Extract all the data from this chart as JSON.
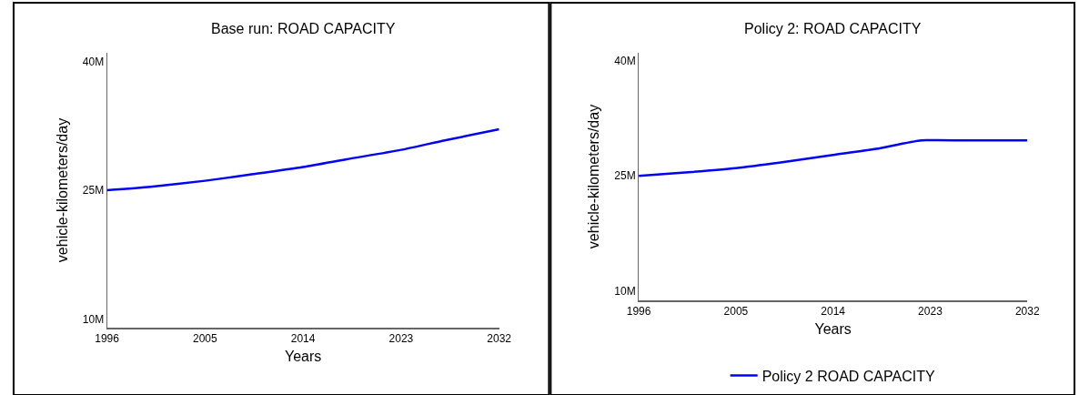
{
  "chart_data": [
    {
      "type": "line",
      "title": "Base run: ROAD CAPACITY",
      "xlabel": "Years",
      "ylabel": "vehicle-kilometers/day",
      "x": [
        1996,
        2000,
        2005,
        2009,
        2014,
        2018,
        2023,
        2027,
        2032
      ],
      "series": [
        {
          "color": "#0000ff",
          "values": [
            25.0,
            25.4,
            26.1,
            26.8,
            27.7,
            28.6,
            29.7,
            30.8,
            32.1
          ]
        }
      ],
      "xlim": [
        1996,
        2032
      ],
      "xticks": [
        1996,
        2005,
        2014,
        2023,
        2032
      ],
      "ylim": [
        9,
        41
      ],
      "yticks": [
        {
          "value": 10,
          "label": "10M"
        },
        {
          "value": 25,
          "label": "25M"
        },
        {
          "value": 40,
          "label": "40M"
        }
      ],
      "legend": false
    },
    {
      "type": "line",
      "title": "Policy 2: ROAD CAPACITY",
      "xlabel": "Years",
      "ylabel": "vehicle-kilometers/day",
      "x": [
        1996,
        2000,
        2005,
        2009,
        2014,
        2018,
        2022.2,
        2027,
        2032
      ],
      "series": [
        {
          "name": "Policy 2 ROAD CAPACITY",
          "color": "#0000ff",
          "values": [
            25.0,
            25.4,
            26.0,
            26.7,
            27.7,
            28.5,
            29.6,
            29.6,
            29.6
          ]
        }
      ],
      "xlim": [
        1996,
        2032
      ],
      "xticks": [
        1996,
        2005,
        2014,
        2023,
        2032
      ],
      "ylim": [
        8.8,
        41
      ],
      "yticks": [
        {
          "value": 10,
          "label": "10M"
        },
        {
          "value": 25,
          "label": "25M"
        },
        {
          "value": 40,
          "label": "40M"
        }
      ],
      "legend": "bottom"
    }
  ]
}
